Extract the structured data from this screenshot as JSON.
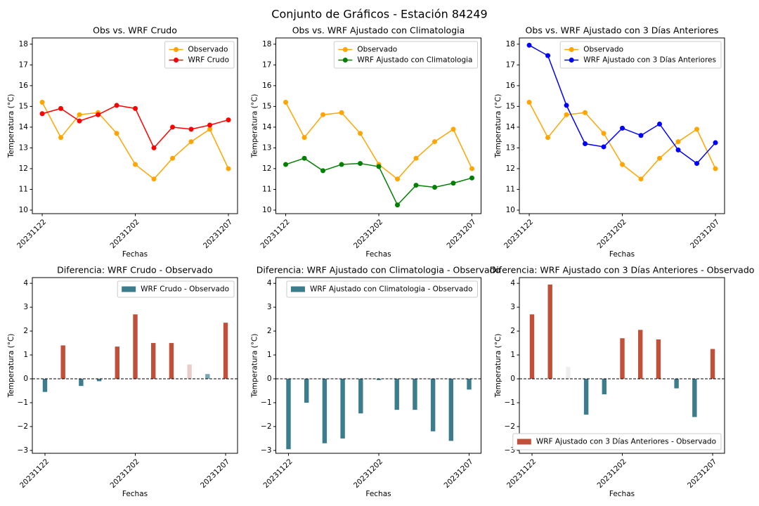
{
  "title": "Conjunto de Gráficos - Estación 84249",
  "chart_data": [
    {
      "type": "line",
      "title": "Obs vs. WRF Crudo",
      "xlabel": "Fechas",
      "ylabel": "Temperatura (°C)",
      "categories": [
        "20231122",
        null,
        null,
        null,
        null,
        "20231202",
        null,
        null,
        null,
        null,
        "20231207"
      ],
      "xlim": [
        -0.53,
        10.49
      ],
      "ylim": [
        9.83,
        18.3
      ],
      "yticks": [
        10,
        11,
        12,
        13,
        14,
        15,
        16,
        17,
        18
      ],
      "legend": "upper right",
      "series": [
        {
          "name": "Observado",
          "color": "#ffa500",
          "values": [
            15.2,
            13.5,
            14.6,
            14.7,
            13.7,
            12.2,
            11.5,
            12.5,
            13.3,
            13.9,
            12.0
          ]
        },
        {
          "name": "WRF Crudo",
          "color": "#ff0000",
          "values": [
            14.65,
            14.9,
            14.3,
            14.6,
            15.05,
            14.9,
            13.0,
            14.0,
            13.9,
            14.1,
            14.35
          ]
        }
      ]
    },
    {
      "type": "line",
      "title": "Obs vs. WRF Ajustado con Climatologia",
      "xlabel": "Fechas",
      "ylabel": "Temperatura (°C)",
      "categories": [
        "20231122",
        null,
        null,
        null,
        null,
        "20231202",
        null,
        null,
        null,
        null,
        "20231207"
      ],
      "xlim": [
        -0.53,
        10.49
      ],
      "ylim": [
        9.83,
        18.3
      ],
      "yticks": [
        10,
        11,
        12,
        13,
        14,
        15,
        16,
        17,
        18
      ],
      "legend": "upper right",
      "series": [
        {
          "name": "Observado",
          "color": "#ffa500",
          "values": [
            15.2,
            13.5,
            14.6,
            14.7,
            13.7,
            12.2,
            11.5,
            12.5,
            13.3,
            13.9,
            12.0
          ]
        },
        {
          "name": "WRF Ajustado con Climatologia",
          "color": "#008000",
          "values": [
            12.2,
            12.5,
            11.9,
            12.2,
            12.25,
            12.1,
            10.25,
            11.2,
            11.1,
            11.3,
            11.55
          ]
        }
      ]
    },
    {
      "type": "line",
      "title": "Obs vs. WRF Ajustado con 3 Días Anteriores",
      "xlabel": "Fechas",
      "ylabel": "Temperatura (°C)",
      "categories": [
        "20231122",
        null,
        null,
        null,
        null,
        "20231202",
        null,
        null,
        null,
        null,
        "20231207"
      ],
      "xlim": [
        -0.53,
        10.49
      ],
      "ylim": [
        9.83,
        18.3
      ],
      "yticks": [
        10,
        11,
        12,
        13,
        14,
        15,
        16,
        17,
        18
      ],
      "legend": "upper right",
      "series": [
        {
          "name": "Observado",
          "color": "#ffa500",
          "values": [
            15.2,
            13.5,
            14.6,
            14.7,
            13.7,
            12.2,
            11.5,
            12.5,
            13.3,
            13.9,
            12.0
          ]
        },
        {
          "name": "WRF Ajustado con 3 Días Anteriores",
          "color": "#0000ff",
          "values": [
            17.95,
            17.45,
            15.05,
            13.2,
            13.05,
            13.95,
            13.6,
            14.15,
            12.9,
            12.25,
            13.25
          ]
        }
      ]
    },
    {
      "type": "bar",
      "title": "Diferencia: WRF Crudo - Observado",
      "xlabel": "Fechas",
      "ylabel": "Temperatura (°C)",
      "categories": [
        "20231122",
        null,
        null,
        null,
        null,
        "20231202",
        null,
        null,
        null,
        null,
        "20231207"
      ],
      "xlim": [
        -0.7,
        10.66
      ],
      "ylim": [
        -3.12,
        4.24
      ],
      "hline": 0,
      "yticks": [
        {
          "value": -3,
          "label": "−3"
        },
        {
          "value": -2,
          "label": "−2"
        },
        {
          "value": -1,
          "label": "−1"
        },
        0,
        1,
        2,
        3,
        4
      ],
      "legend": "upper right",
      "series": [
        {
          "name": "WRF Crudo - Observado",
          "color": "#3b7d8e",
          "values": [
            -0.55,
            1.4,
            -0.3,
            -0.1,
            1.35,
            2.7,
            1.5,
            1.5,
            0.6,
            0.2,
            2.35
          ],
          "colors": [
            "#3b7d8e",
            "#c0503a",
            "#3b7d8e",
            "#3b7d8e",
            "#c0503a",
            "#c0503a",
            "#c0503a",
            "#c0503a",
            "#e8cdc8",
            "#7aa6b3",
            "#c0503a"
          ]
        }
      ]
    },
    {
      "type": "bar",
      "title": "Diferencia: WRF Ajustado con Climatologia - Observado",
      "xlabel": "Fechas",
      "ylabel": "Temperatura (°C)",
      "categories": [
        "20231122",
        null,
        null,
        null,
        null,
        "20231202",
        null,
        null,
        null,
        null,
        "20231207"
      ],
      "xlim": [
        -0.7,
        10.66
      ],
      "ylim": [
        -3.12,
        4.24
      ],
      "hline": 0,
      "yticks": [
        {
          "value": -3,
          "label": "−3"
        },
        {
          "value": -2,
          "label": "−2"
        },
        {
          "value": -1,
          "label": "−1"
        },
        0,
        1,
        2,
        3,
        4
      ],
      "legend": "upper right",
      "series": [
        {
          "name": "WRF Ajustado con Climatologia - Observado",
          "color": "#3b7d8e",
          "values": [
            -2.95,
            -1.0,
            -2.7,
            -2.5,
            -1.45,
            -0.05,
            -1.3,
            -1.3,
            -2.2,
            -2.6,
            -0.45
          ],
          "colors": [
            "#3b7d8e",
            "#3b7d8e",
            "#3b7d8e",
            "#3b7d8e",
            "#3b7d8e",
            "#3b7d8e",
            "#3b7d8e",
            "#3b7d8e",
            "#3b7d8e",
            "#3b7d8e",
            "#3b7d8e"
          ]
        }
      ]
    },
    {
      "type": "bar",
      "title": "Diferencia: WRF Ajustado con 3 Días Anteriores - Observado",
      "xlabel": "Fechas",
      "ylabel": "Temperatura (°C)",
      "categories": [
        "20231122",
        null,
        null,
        null,
        null,
        "20231202",
        null,
        null,
        null,
        null,
        "20231207"
      ],
      "xlim": [
        -0.7,
        10.66
      ],
      "ylim": [
        -3.12,
        4.24
      ],
      "hline": 0,
      "yticks": [
        {
          "value": -3,
          "label": "−3"
        },
        {
          "value": -2,
          "label": "−2"
        },
        {
          "value": -1,
          "label": "−1"
        },
        0,
        1,
        2,
        3,
        4
      ],
      "legend": "lower right",
      "series": [
        {
          "name": "WRF Ajustado con 3 Días Anteriores - Observado",
          "color": "#c0503a",
          "values": [
            2.7,
            3.95,
            0.5,
            -1.5,
            -0.65,
            1.7,
            2.05,
            1.65,
            -0.4,
            -1.6,
            1.25
          ],
          "colors": [
            "#c0503a",
            "#c0503a",
            "#eeeeee",
            "#3b7d8e",
            "#3b7d8e",
            "#c0503a",
            "#c0503a",
            "#c0503a",
            "#3b7d8e",
            "#3b7d8e",
            "#c0503a"
          ]
        }
      ]
    }
  ]
}
